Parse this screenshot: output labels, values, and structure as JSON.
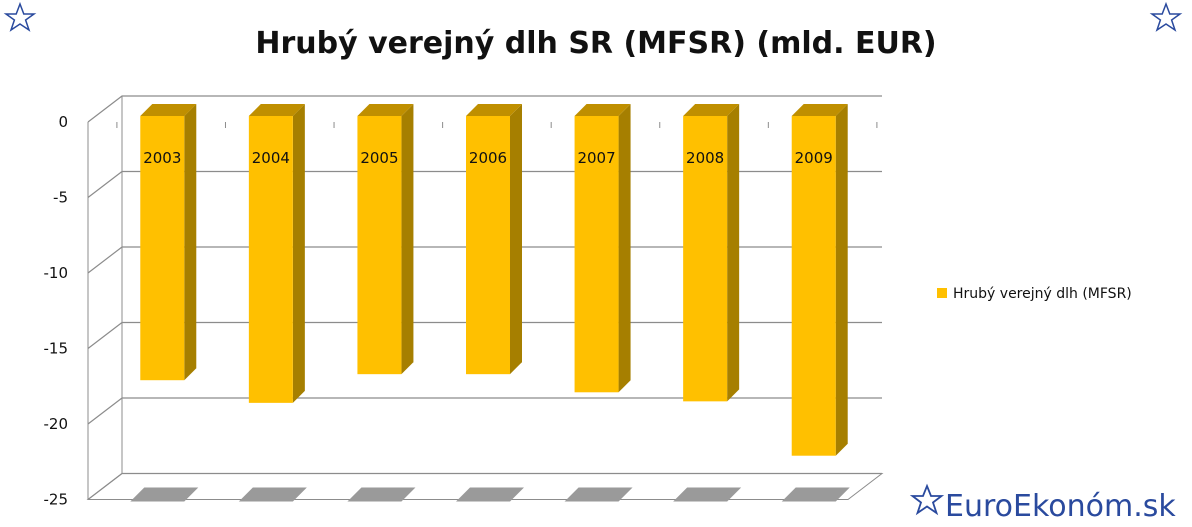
{
  "chart_data": {
    "type": "bar",
    "title": "Hrubý verejný dlh SR (MFSR) (mld. EUR)",
    "categories": [
      "2003",
      "2004",
      "2005",
      "2006",
      "2007",
      "2008",
      "2009"
    ],
    "series": [
      {
        "name": "Hrubý verejný dlh (MFSR)",
        "values": [
          -17.1,
          -18.6,
          -16.7,
          -16.7,
          -17.9,
          -18.5,
          -22.1
        ]
      }
    ],
    "yticks": [
      "0",
      "-5",
      "-10",
      "-15",
      "-20",
      "-25"
    ],
    "ylim": [
      -25,
      0
    ],
    "grid": true,
    "legend_position": "right",
    "colors": {
      "bar_front": "#ffc000",
      "bar_side": "#a67f00",
      "bar_top": "#bf8f00",
      "grid": "#8c8c8c",
      "shadow": "#9a9a9a",
      "brand": "#2a4a9e"
    }
  },
  "branding": {
    "text": "EuroEkonóm.sk",
    "icon": "star-icon"
  }
}
